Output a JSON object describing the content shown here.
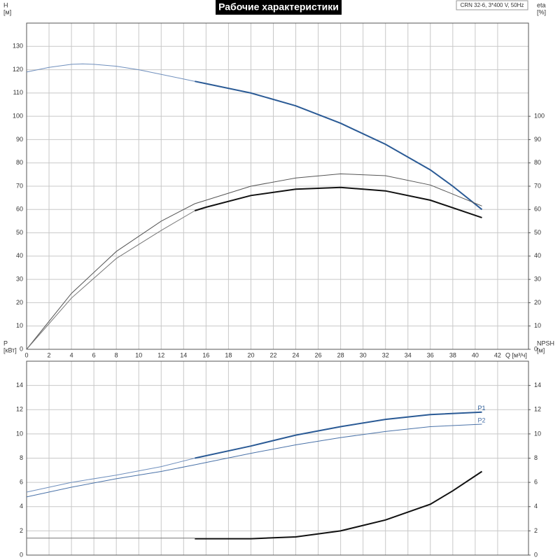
{
  "title": "Рабочие характеристики",
  "annotation": "CRN 32-6, 3*400 V, 50Hz",
  "chart_data": [
    {
      "type": "line",
      "y_label": [
        "H",
        "[м]"
      ],
      "y2_label": [
        "eta",
        "[%]"
      ],
      "x_label": "Q [м³/ч]",
      "xlim": [
        0,
        44.75
      ],
      "xticks": [
        0,
        2,
        4,
        6,
        8,
        10,
        12,
        14,
        16,
        18,
        20,
        22,
        24,
        26,
        28,
        30,
        32,
        34,
        36,
        38,
        40,
        42
      ],
      "ylim": [
        0,
        140
      ],
      "yticks": [
        0,
        10,
        20,
        30,
        40,
        50,
        60,
        70,
        80,
        90,
        100,
        110,
        120,
        130
      ],
      "y2lim": [
        0,
        140
      ],
      "y2ticks": [
        0,
        10,
        20,
        30,
        40,
        50,
        60,
        70,
        80,
        90,
        100
      ],
      "grid": true,
      "series": [
        {
          "color": "#6f8fbd",
          "width": 1,
          "x": [
            0,
            2,
            4,
            5,
            6,
            8,
            10,
            12,
            14,
            15
          ],
          "values": [
            119,
            121,
            122.3,
            122.5,
            122.3,
            121.5,
            120,
            118,
            116,
            115
          ]
        },
        {
          "color": "#2a5a95",
          "width": 2,
          "x": [
            15,
            16,
            20,
            24,
            28,
            32,
            36,
            38,
            40.6
          ],
          "values": [
            115,
            114,
            110,
            104.5,
            97,
            88,
            77,
            70,
            60
          ]
        },
        {
          "color": "#555555",
          "width": 1,
          "axis": "y2",
          "x": [
            0,
            4,
            8,
            12,
            15,
            16,
            20,
            24,
            28,
            32,
            36,
            40.6
          ],
          "values": [
            0,
            24,
            42,
            55,
            62.5,
            64,
            70,
            73.5,
            75.3,
            74.5,
            70.5,
            61.5
          ]
        },
        {
          "color": "#777777",
          "width": 1,
          "axis": "y2",
          "x": [
            0,
            4,
            8,
            12,
            15
          ],
          "values": [
            0,
            22,
            39,
            51,
            59.5
          ]
        },
        {
          "color": "#111111",
          "width": 2,
          "axis": "y2",
          "x": [
            15,
            16,
            20,
            24,
            28,
            32,
            36,
            40.6
          ],
          "values": [
            59.5,
            61,
            66,
            68.7,
            69.5,
            68,
            64,
            56.5
          ]
        }
      ]
    },
    {
      "type": "line",
      "y_label": [
        "P",
        "[кВт]"
      ],
      "y2_label": [
        "NPSH",
        "[м]"
      ],
      "xlim": [
        0,
        44.75
      ],
      "xticks": [
        0,
        2,
        4,
        6,
        8,
        10,
        12,
        14,
        16,
        18,
        20,
        22,
        24,
        26,
        28,
        30,
        32,
        34,
        36,
        38,
        40,
        42
      ],
      "xtick_labels": false,
      "ylim": [
        0,
        16
      ],
      "yticks": [
        0,
        2,
        4,
        6,
        8,
        10,
        12,
        14
      ],
      "y2lim": [
        0,
        16
      ],
      "y2ticks": [
        0,
        2,
        4,
        6,
        8,
        10,
        12,
        14
      ],
      "grid": true,
      "series": [
        {
          "color": "#6f8fbd",
          "width": 1,
          "x": [
            0,
            4,
            8,
            12,
            15
          ],
          "values": [
            5.2,
            6.0,
            6.6,
            7.3,
            8.0
          ]
        },
        {
          "name": "P1",
          "color": "#2a5a95",
          "width": 2,
          "x": [
            15,
            20,
            24,
            28,
            32,
            36,
            40.6
          ],
          "values": [
            8.0,
            9.0,
            9.9,
            10.6,
            11.2,
            11.6,
            11.8
          ]
        },
        {
          "name": "P2",
          "color": "#4a72a8",
          "width": 1,
          "x": [
            0,
            4,
            8,
            12,
            15,
            20,
            24,
            28,
            32,
            36,
            40.6
          ],
          "values": [
            4.8,
            5.6,
            6.3,
            6.9,
            7.45,
            8.4,
            9.1,
            9.7,
            10.2,
            10.6,
            10.8
          ]
        },
        {
          "color": "#777777",
          "width": 1,
          "axis": "y2",
          "x": [
            0,
            4,
            8,
            12,
            15
          ],
          "values": [
            1.4,
            1.4,
            1.4,
            1.4,
            1.4
          ]
        },
        {
          "color": "#111111",
          "width": 2,
          "axis": "y2",
          "x": [
            15,
            20,
            24,
            28,
            32,
            36,
            38,
            40.6
          ],
          "values": [
            1.35,
            1.35,
            1.5,
            2.0,
            2.9,
            4.2,
            5.3,
            6.9
          ]
        }
      ]
    }
  ]
}
